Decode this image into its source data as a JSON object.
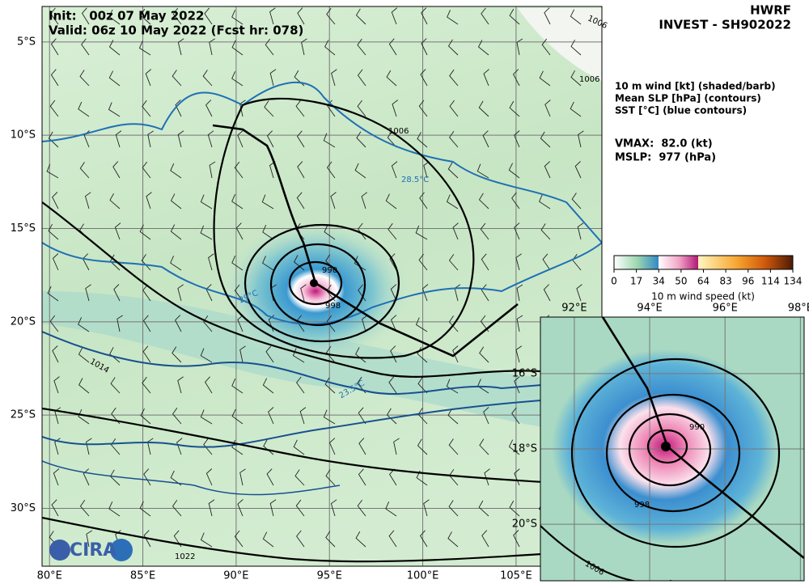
{
  "header": {
    "init": "Init:   00z 07 May 2022",
    "valid": "Valid: 06z 10 May 2022 (Fcst hr: 078)",
    "model": "HWRF",
    "storm": "INVEST - SH902022"
  },
  "legend": {
    "lines": [
      "10 m wind [kt] (shaded/barb)",
      "Mean SLP [hPa] (contours)",
      "SST [°C] (blue contours)"
    ],
    "vmax": "VMAX:  82.0 (kt)",
    "mslp": "MSLP:  977 (hPa)"
  },
  "colorbar": {
    "label": "10 m wind speed (kt)",
    "ticks": [
      0,
      17,
      34,
      50,
      64,
      83,
      96,
      114,
      134
    ]
  },
  "map": {
    "lonlim": [
      79.6,
      109.6
    ],
    "latlim": [
      -3.1,
      -33.1
    ],
    "xticks": [
      {
        "value": 80,
        "label": "80°E"
      },
      {
        "value": 85,
        "label": "85°E"
      },
      {
        "value": 90,
        "label": "90°E"
      },
      {
        "value": 95,
        "label": "95°E"
      },
      {
        "value": 100,
        "label": "100°E"
      },
      {
        "value": 105,
        "label": "105°E"
      }
    ],
    "yticks": [
      {
        "value": -5,
        "label": "5°S"
      },
      {
        "value": -10,
        "label": "10°S"
      },
      {
        "value": -15,
        "label": "15°S"
      },
      {
        "value": -20,
        "label": "20°S"
      },
      {
        "value": -25,
        "label": "25°S"
      },
      {
        "value": -30,
        "label": "30°S"
      }
    ],
    "contour_labels": [
      "1006",
      "1006",
      "1006",
      "28.5°C",
      "29°C",
      "23.5°C",
      "1014",
      "1022",
      "990",
      "998"
    ]
  },
  "inset": {
    "lonlim": [
      91.1,
      98.1
    ],
    "latlim": [
      -14.5,
      -21.5
    ],
    "xticks": [
      {
        "value": 92,
        "label": "92°E"
      },
      {
        "value": 94,
        "label": "94°E"
      },
      {
        "value": 96,
        "label": "96°E"
      },
      {
        "value": 98,
        "label": "98°E"
      }
    ],
    "yticks": [
      {
        "value": -16,
        "label": "16°S"
      },
      {
        "value": -18,
        "label": "18°S"
      },
      {
        "value": -20,
        "label": "20°S"
      }
    ],
    "contour_labels": [
      "990",
      "998",
      "1006"
    ]
  },
  "logo": "CIRA"
}
